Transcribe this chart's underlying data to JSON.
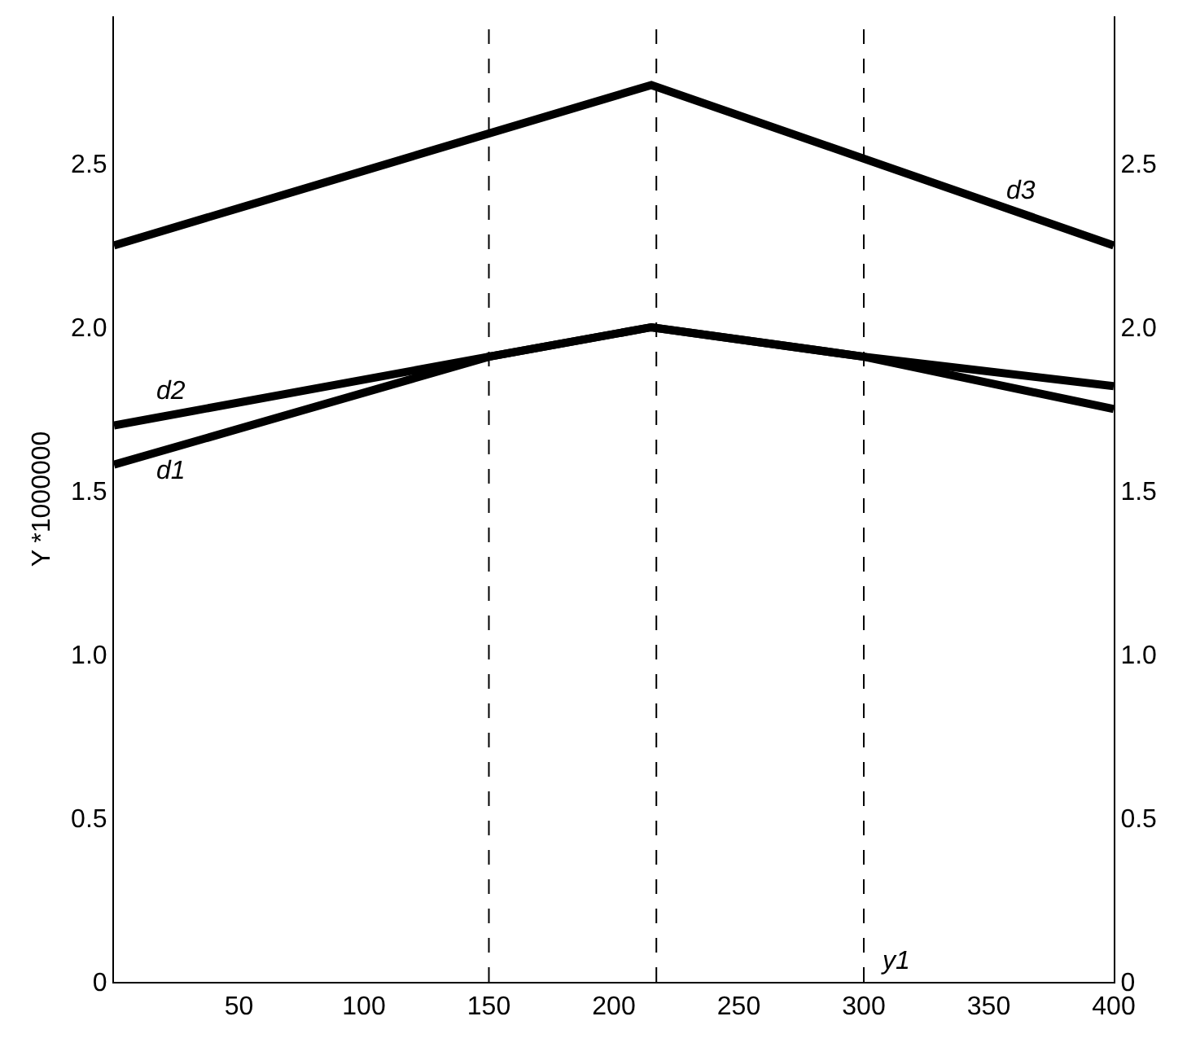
{
  "chart_data": {
    "type": "line",
    "ylabel": "Y *1000000",
    "x": [
      0,
      150,
      215,
      300,
      400
    ],
    "series": [
      {
        "name": "d1",
        "color": "#000000",
        "values": [
          1.58,
          1.91,
          2.0,
          1.91,
          1.75
        ]
      },
      {
        "name": "d2",
        "color": "#000000",
        "values": [
          1.7,
          1.91,
          2.0,
          1.91,
          1.82
        ]
      },
      {
        "name": "d3",
        "color": "#000000",
        "x": [
          0,
          215,
          400
        ],
        "values": [
          2.25,
          2.74,
          2.25
        ]
      }
    ],
    "xlim": [
      0,
      400
    ],
    "xticks": [
      50,
      100,
      150,
      200,
      250,
      300,
      350,
      400
    ],
    "ylim": [
      0,
      2.95
    ],
    "yticks": [
      0,
      0.5,
      {
        "value": 1,
        "label": "1.0"
      },
      1.5,
      {
        "value": 2,
        "label": "2.0"
      },
      2.5
    ],
    "y2lim": [
      0,
      2.95
    ],
    "y2ticks": [
      0,
      0.5,
      {
        "value": 1,
        "label": "1.0"
      },
      1.5,
      {
        "value": 2,
        "label": "2.0"
      },
      2.5
    ],
    "ref_lines": [
      {
        "axis": "x",
        "value": 150,
        "line_style": "dashed",
        "color": "#000000"
      },
      {
        "axis": "x",
        "value": 217,
        "line_style": "dashed",
        "color": "#000000"
      },
      {
        "axis": "x",
        "value": 300,
        "line_style": "dashed",
        "color": "#000000"
      }
    ],
    "xlabel": "y1",
    "legend": false,
    "marker": "none",
    "line_style": "solid"
  }
}
